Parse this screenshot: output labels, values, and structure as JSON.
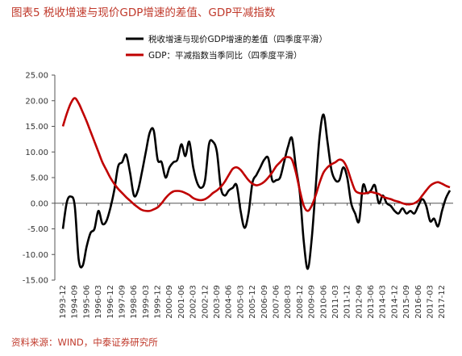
{
  "title": "图表5 税收增速与现价GDP增速的差值、GDP平减指数",
  "source": "资料来源：WIND，中泰证券研究所",
  "chart_data": {
    "type": "line",
    "y_ticks": [
      "25.00",
      "20.00",
      "15.00",
      "10.00",
      "5.00",
      "0.00",
      "-5.00",
      "-10.00",
      "-15.00"
    ],
    "ylim": [
      -15,
      25
    ],
    "x_ticks": [
      "1993-12",
      "1994-09",
      "1995-06",
      "1996-03",
      "1996-12",
      "1997-09",
      "1998-06",
      "1999-03",
      "1999-12",
      "2000-09",
      "2001-06",
      "2002-03",
      "2002-12",
      "2003-09",
      "2004-06",
      "2005-03",
      "2005-12",
      "2006-09",
      "2007-06",
      "2008-03",
      "2008-12",
      "2009-09",
      "2010-06",
      "2011-03",
      "2011-12",
      "2012-09",
      "2013-06",
      "2014-03",
      "2014-12",
      "2015-09",
      "2016-06",
      "2017-03",
      "2017-12"
    ],
    "x_range": [
      "1993-12",
      "2018-06"
    ],
    "grid": false,
    "legend_position": "top",
    "series": [
      {
        "name": "税收增速与现价GDP增速的差值（四季度平滑）",
        "color": "#000000",
        "x": [
          "1993-12",
          "1994-03",
          "1994-06",
          "1994-09",
          "1994-12",
          "1995-03",
          "1995-06",
          "1995-09",
          "1995-12",
          "1996-03",
          "1996-06",
          "1996-09",
          "1996-12",
          "1997-03",
          "1997-06",
          "1997-09",
          "1997-12",
          "1998-03",
          "1998-06",
          "1998-09",
          "1998-12",
          "1999-03",
          "1999-06",
          "1999-09",
          "1999-12",
          "2000-03",
          "2000-06",
          "2000-09",
          "2000-12",
          "2001-03",
          "2001-06",
          "2001-09",
          "2001-12",
          "2002-03",
          "2002-06",
          "2002-09",
          "2002-12",
          "2003-03",
          "2003-06",
          "2003-09",
          "2003-12",
          "2004-03",
          "2004-06",
          "2004-09",
          "2004-12",
          "2005-03",
          "2005-06",
          "2005-09",
          "2005-12",
          "2006-03",
          "2006-06",
          "2006-09",
          "2006-12",
          "2007-03",
          "2007-06",
          "2007-09",
          "2007-12",
          "2008-03",
          "2008-06",
          "2008-09",
          "2008-12",
          "2009-03",
          "2009-06",
          "2009-09",
          "2009-12",
          "2010-03",
          "2010-06",
          "2010-09",
          "2010-12",
          "2011-03",
          "2011-06",
          "2011-09",
          "2011-12",
          "2012-03",
          "2012-06",
          "2012-09",
          "2012-12",
          "2013-03",
          "2013-06",
          "2013-09",
          "2013-12",
          "2014-03",
          "2014-06",
          "2014-09",
          "2014-12",
          "2015-03",
          "2015-06",
          "2015-09",
          "2015-12",
          "2016-03",
          "2016-06",
          "2016-09",
          "2016-12",
          "2017-03",
          "2017-06",
          "2017-09",
          "2017-12",
          "2018-03",
          "2018-06"
        ],
        "values": [
          -5.0,
          0.2,
          1.3,
          -0.5,
          -11.0,
          -12.2,
          -8.5,
          -5.8,
          -5.0,
          -1.5,
          -4.0,
          -3.5,
          -1.0,
          2.5,
          7.2,
          8.0,
          9.5,
          6.0,
          1.5,
          2.5,
          6.0,
          10.0,
          13.8,
          14.2,
          8.5,
          8.0,
          5.0,
          7.0,
          8.0,
          8.5,
          11.5,
          9.2,
          12.0,
          7.0,
          4.0,
          3.0,
          4.5,
          11.5,
          12.0,
          10.0,
          3.0,
          1.5,
          2.5,
          3.0,
          3.5,
          -1.5,
          -4.8,
          -2.0,
          4.0,
          5.5,
          7.0,
          8.5,
          8.8,
          4.5,
          4.5,
          5.0,
          8.0,
          11.0,
          12.7,
          7.0,
          2.0,
          -7.5,
          -12.8,
          -7.0,
          3.0,
          13.0,
          17.3,
          12.0,
          6.5,
          4.5,
          4.5,
          7.0,
          5.0,
          0.0,
          -2.0,
          -3.5,
          3.5,
          2.0,
          2.5,
          3.5,
          0.0,
          1.5,
          0.0,
          -0.5,
          -1.5,
          -2.0,
          -1.0,
          -2.0,
          -1.5,
          -2.0,
          -0.5,
          0.8,
          -0.5,
          -3.5,
          -3.0,
          -4.5,
          -1.5,
          1.0,
          2.5
        ]
      },
      {
        "name": "GDP：平减指数当季同比（四季度平滑）",
        "color": "#c00000",
        "x": [
          "1993-12",
          "1994-03",
          "1994-06",
          "1994-09",
          "1994-12",
          "1995-03",
          "1995-06",
          "1995-09",
          "1995-12",
          "1996-03",
          "1996-06",
          "1996-09",
          "1996-12",
          "1997-03",
          "1997-06",
          "1997-09",
          "1997-12",
          "1998-03",
          "1998-06",
          "1998-09",
          "1998-12",
          "1999-03",
          "1999-06",
          "1999-09",
          "1999-12",
          "2000-03",
          "2000-06",
          "2000-09",
          "2000-12",
          "2001-03",
          "2001-06",
          "2001-09",
          "2001-12",
          "2002-03",
          "2002-06",
          "2002-09",
          "2002-12",
          "2003-03",
          "2003-06",
          "2003-09",
          "2003-12",
          "2004-03",
          "2004-06",
          "2004-09",
          "2004-12",
          "2005-03",
          "2005-06",
          "2005-09",
          "2005-12",
          "2006-03",
          "2006-06",
          "2006-09",
          "2006-12",
          "2007-03",
          "2007-06",
          "2007-09",
          "2007-12",
          "2008-03",
          "2008-06",
          "2008-09",
          "2008-12",
          "2009-03",
          "2009-06",
          "2009-09",
          "2009-12",
          "2010-03",
          "2010-06",
          "2010-09",
          "2010-12",
          "2011-03",
          "2011-06",
          "2011-09",
          "2011-12",
          "2012-03",
          "2012-06",
          "2012-09",
          "2012-12",
          "2013-03",
          "2013-06",
          "2013-09",
          "2013-12",
          "2014-03",
          "2014-06",
          "2014-09",
          "2014-12",
          "2015-03",
          "2015-06",
          "2015-09",
          "2015-12",
          "2016-03",
          "2016-06",
          "2016-09",
          "2016-12",
          "2017-03",
          "2017-06",
          "2017-09",
          "2017-12",
          "2018-03",
          "2018-06"
        ],
        "values": [
          15.0,
          17.5,
          19.5,
          20.5,
          19.5,
          17.8,
          16.0,
          14.0,
          12.0,
          10.0,
          8.0,
          6.5,
          5.0,
          3.8,
          2.8,
          2.0,
          1.2,
          0.5,
          -0.2,
          -0.8,
          -1.3,
          -1.5,
          -1.5,
          -1.2,
          -0.8,
          0.0,
          1.0,
          1.8,
          2.3,
          2.4,
          2.3,
          2.0,
          1.6,
          1.0,
          0.7,
          0.6,
          0.8,
          1.3,
          2.0,
          2.5,
          3.2,
          4.2,
          5.5,
          6.7,
          7.0,
          6.5,
          5.5,
          4.5,
          3.8,
          3.5,
          3.7,
          4.2,
          5.0,
          6.0,
          7.2,
          8.0,
          8.8,
          9.0,
          8.5,
          6.0,
          2.5,
          -0.5,
          -1.5,
          -0.5,
          1.5,
          4.0,
          6.0,
          7.0,
          7.6,
          8.0,
          8.5,
          8.2,
          6.8,
          4.5,
          2.5,
          2.0,
          1.9,
          2.0,
          2.2,
          2.0,
          1.8,
          1.3,
          1.0,
          0.8,
          0.5,
          0.3,
          0.0,
          -0.2,
          -0.2,
          0.0,
          0.5,
          1.5,
          2.5,
          3.4,
          3.9,
          4.1,
          3.8,
          3.4,
          3.1
        ]
      }
    ]
  }
}
